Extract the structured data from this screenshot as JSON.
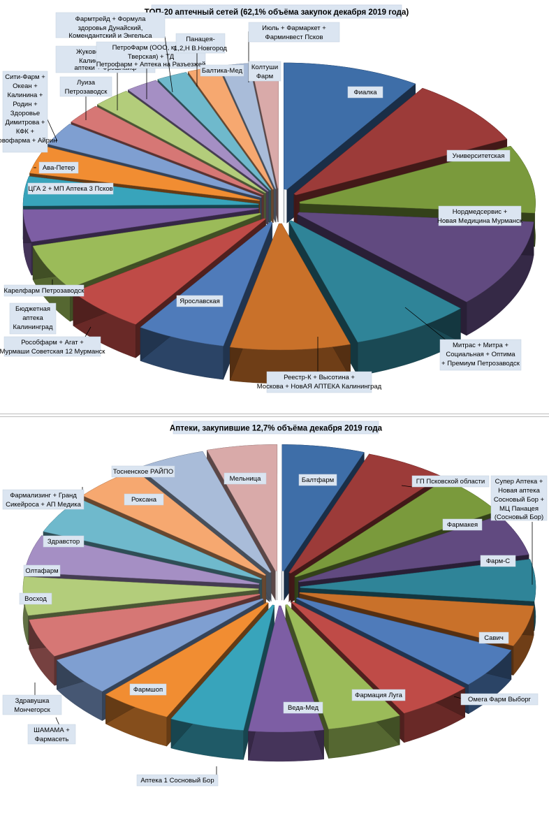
{
  "chart_data": [
    {
      "type": "pie",
      "title": "ТОП-20 аптечный сетей (62,1% объёма закупок декабря 2019 года)",
      "slices": [
        {
          "label": "Фиалка",
          "value": 8.0,
          "color": "#3e6ea8"
        },
        {
          "label": "Университетская",
          "value": 7.4,
          "color": "#9c3b39"
        },
        {
          "label": "Нордмедсервис + Новая Медицина Мурманск",
          "value": 7.4,
          "color": "#7a9a3c"
        },
        {
          "label": "Митрас + Митра + Социальная + Оптима + Премиум Петрозаводск",
          "value": 9.6,
          "color": "#614a80"
        },
        {
          "label": "Реестр-К + Высотина + Москова + НовАЯ АПТЕКА Калининград",
          "value": 7.0,
          "color": "#2f8498"
        },
        {
          "label": "Ярославская",
          "value": 7.0,
          "color": "#c9712a"
        },
        {
          "label": "Рособфарм + Агат + Мурмаши Советская 12 Мурманск",
          "value": 5.2,
          "color": "#4f7bba"
        },
        {
          "label": "Бюджетная аптека Калининград",
          "value": 5.0,
          "color": "#bf4b47"
        },
        {
          "label": "Карелфарм Петрозаводск",
          "value": 5.0,
          "color": "#9bbb59"
        },
        {
          "label": "ЦГА 2 + МП Аптека 3 Псков",
          "value": 3.5,
          "color": "#7d5ea4"
        },
        {
          "label": "Ава-Петер",
          "value": 3.2,
          "color": "#38a4bb"
        },
        {
          "label": "Сити-Фарм + Океан + Калинина + Родин + Здоровье Димитрова + КФК + Новофарма + Айрин",
          "value": 3.0,
          "color": "#f18d32"
        },
        {
          "label": "Луиза Петрозаводск",
          "value": 2.5,
          "color": "#7f9fd1"
        },
        {
          "label": "Жуковская + Ригла Калининград + ... аптеки + Фрэшлайф",
          "value": 2.2,
          "color": "#d67775"
        },
        {
          "label": "ПетроФарм (ООО, кроме Тверская) + ТД Петрофарм + Аптека на Разъезжей",
          "value": 2.2,
          "color": "#b3cd7b"
        },
        {
          "label": "Фармтрейд + Формула здоровья Дунайский, Комендантский и Энгельса",
          "value": 1.9,
          "color": "#a58fc4"
        },
        {
          "label": "Панацея- 1,2,Н В.Новгород",
          "value": 1.8,
          "color": "#6fb9cc"
        },
        {
          "label": "Балтика-Мед",
          "value": 1.8,
          "color": "#f6a870"
        },
        {
          "label": "Июль + Фармаркет + Фарминвест Псков",
          "value": 1.7,
          "color": "#a9bcd9"
        },
        {
          "label": "Колтуши Фарм",
          "value": 1.6,
          "color": "#d9aaa9"
        }
      ]
    },
    {
      "type": "pie",
      "title": "Аптеки, закупившие 12,7% объёма декабря 2019 года",
      "slices": [
        {
          "label": "Балтфарм",
          "value": 5.3,
          "color": "#3e6ea8"
        },
        {
          "label": "ГП Псковской области",
          "value": 5.3,
          "color": "#9c3b39"
        },
        {
          "label": "Фармакея",
          "value": 5.0,
          "color": "#7a9a3c"
        },
        {
          "label": "Фарм-С",
          "value": 5.0,
          "color": "#614a80"
        },
        {
          "label": "Супер Аптека + Новая аптека Сосновый Бор + МЦ Панацея (Сосновый Бор)",
          "value": 5.0,
          "color": "#2f8498"
        },
        {
          "label": "Савич",
          "value": 4.9,
          "color": "#c9712a"
        },
        {
          "label": "Омега Фарм Выборг",
          "value": 4.9,
          "color": "#4f7bba"
        },
        {
          "label": "Фармация Луга",
          "value": 4.9,
          "color": "#bf4b47"
        },
        {
          "label": "Веда-Мед",
          "value": 4.8,
          "color": "#9bbb59"
        },
        {
          "label": "Аптека 1 Сосновый Бор",
          "value": 4.8,
          "color": "#7d5ea4"
        },
        {
          "label": "Фармшоп",
          "value": 4.8,
          "color": "#38a4bb"
        },
        {
          "label": "ШАМАМА + Фармасеть",
          "value": 4.7,
          "color": "#f18d32"
        },
        {
          "label": "Здравушка Мончегорск",
          "value": 4.7,
          "color": "#7f9fd1"
        },
        {
          "label": "Восход",
          "value": 4.6,
          "color": "#d67775"
        },
        {
          "label": "Олтафарм",
          "value": 4.6,
          "color": "#b3cd7b"
        },
        {
          "label": "Здравстор",
          "value": 4.5,
          "color": "#a58fc4"
        },
        {
          "label": "Фармализинг + Гранд Сикейроса + АП Медика",
          "value": 4.5,
          "color": "#6fb9cc"
        },
        {
          "label": "Роксана",
          "value": 4.5,
          "color": "#f6a870"
        },
        {
          "label": "Тосненское РАЙПО",
          "value": 4.5,
          "color": "#a9bcd9"
        },
        {
          "label": "Мельница",
          "value": 4.5,
          "color": "#d9aaa9"
        }
      ]
    }
  ]
}
